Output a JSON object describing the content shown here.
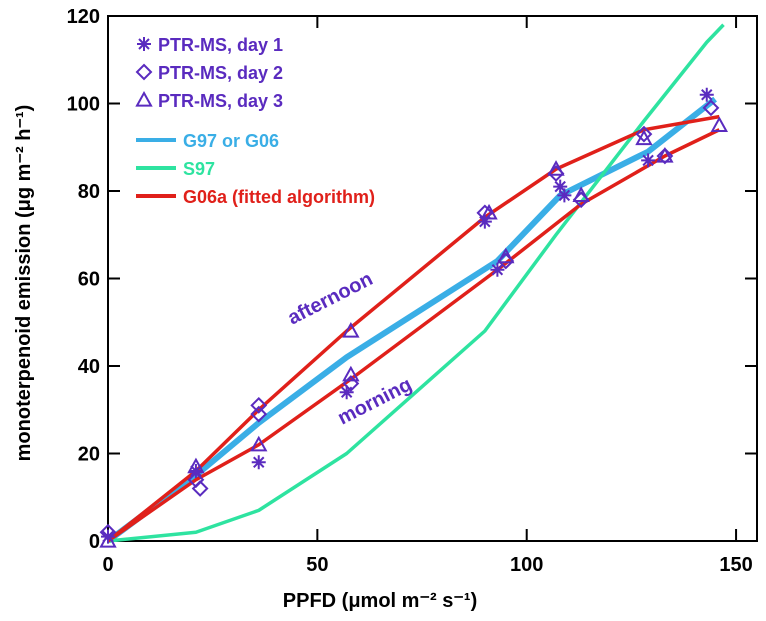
{
  "chart_data": {
    "type": "scatter",
    "xlabel": "PPFD (μmol m⁻² s⁻¹)",
    "ylabel": "monoterpenoid emission (μg m⁻² h⁻¹)",
    "xlim": [
      0,
      155
    ],
    "ylim": [
      0,
      120
    ],
    "xticks": [
      0,
      50,
      100,
      150
    ],
    "yticks": [
      0,
      20,
      40,
      60,
      80,
      100,
      120
    ],
    "legend": "upper left",
    "series": [
      {
        "name": "PTR-MS, day 1",
        "color": "#5a2bbf",
        "marker": "asterisk",
        "x": [
          0,
          21,
          36,
          57,
          90,
          93,
          108,
          109,
          129,
          143
        ],
        "values": [
          1,
          16,
          18,
          34,
          73,
          62,
          81,
          79,
          87,
          102
        ]
      },
      {
        "name": "PTR-MS, day 2",
        "color": "#5a2bbf",
        "marker": "diamond",
        "x": [
          0,
          21,
          22,
          36,
          36,
          58,
          90,
          95,
          107,
          113,
          128,
          133,
          144
        ],
        "values": [
          2,
          14,
          12,
          31,
          29,
          36,
          75,
          64,
          84,
          78,
          93,
          88,
          99
        ]
      },
      {
        "name": "PTR-MS, day 3",
        "color": "#5a2bbf",
        "marker": "triangle",
        "x": [
          0,
          21,
          36,
          58,
          58,
          91,
          95,
          107,
          113,
          128,
          133,
          146
        ],
        "values": [
          0,
          17,
          22,
          48,
          38,
          75,
          65,
          85,
          79,
          92,
          88,
          95
        ]
      },
      {
        "name": "G97 or G06",
        "color": "#3aaee6",
        "marker": "line",
        "x": [
          0,
          21,
          36,
          57,
          93,
          108,
          129,
          145
        ],
        "values": [
          0,
          15,
          27,
          42,
          64,
          79,
          89,
          101
        ]
      },
      {
        "name": "S97",
        "color": "#2ee3a0",
        "marker": "line",
        "x": [
          0,
          21,
          36,
          57,
          90,
          107,
          128,
          143,
          147
        ],
        "values": [
          0,
          2,
          7,
          20,
          48,
          70,
          96,
          114,
          118
        ]
      },
      {
        "name": "G06a (fitted algorithm)",
        "color": "#e0201a",
        "marker": "line",
        "x": [
          0,
          21,
          36,
          57,
          90,
          107,
          128,
          146
        ],
        "values": [
          0,
          16,
          30,
          48,
          74,
          85,
          94,
          97
        ]
      },
      {
        "color": "#e0201a",
        "marker": "line",
        "x": [
          0,
          21,
          36,
          58,
          93,
          113,
          133,
          146
        ],
        "values": [
          0,
          14,
          22,
          37,
          62,
          77,
          88,
          94
        ]
      }
    ],
    "annotations": [
      "afternoon",
      "morning"
    ]
  }
}
